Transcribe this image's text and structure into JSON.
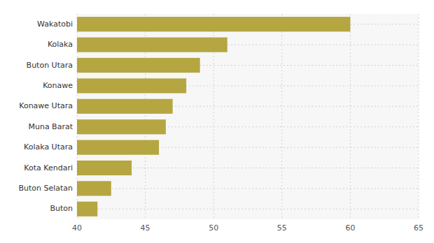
{
  "chart_data": {
    "type": "bar",
    "orientation": "horizontal",
    "categories": [
      "Buton",
      "Buton Selatan",
      "Kota Kendari",
      "Kolaka Utara",
      "Muna Barat",
      "Konawe Utara",
      "Konawe",
      "Buton Utara",
      "Kolaka",
      "Wakatobi"
    ],
    "values": [
      41.5,
      42.5,
      44.0,
      46.0,
      46.5,
      47.0,
      48.0,
      49.0,
      51.0,
      60.0
    ],
    "color": "#b5a642",
    "xlim": [
      40,
      65
    ],
    "xticks": [
      40,
      45,
      50,
      55,
      60,
      65
    ],
    "grid": true
  }
}
